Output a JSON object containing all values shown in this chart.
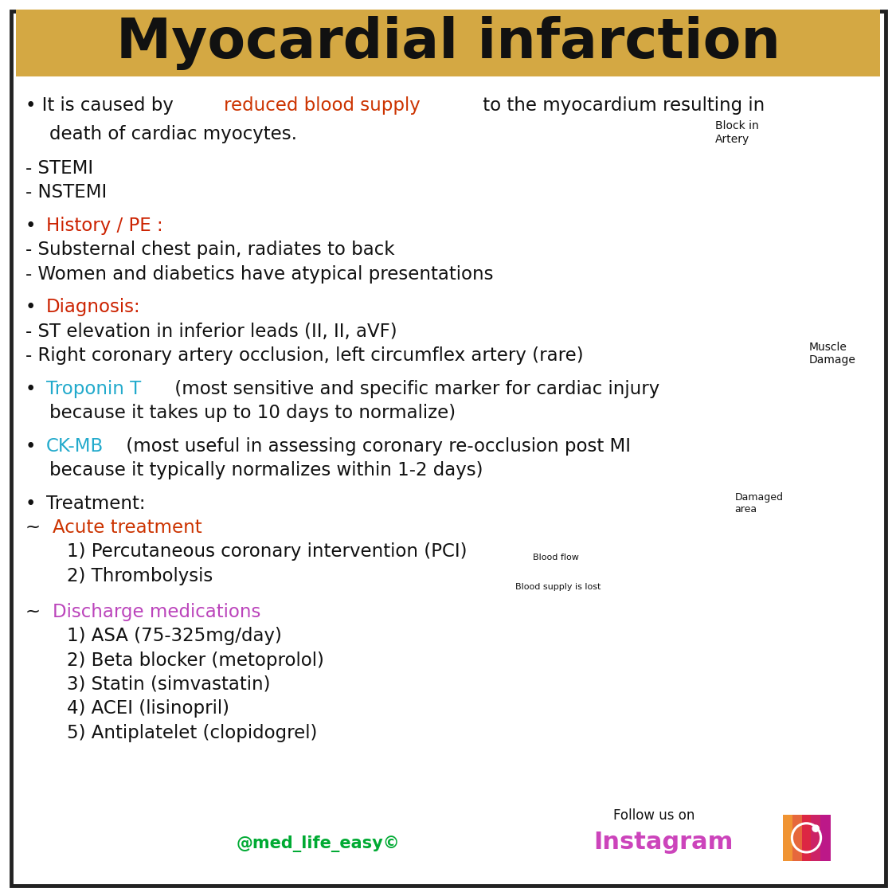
{
  "title": "Myocardial infarction",
  "title_bg": "#D4A843",
  "bg_color": "#FFFFFF",
  "border_color": "#222222",
  "title_color": "#111111",
  "black": "#111111",
  "red": "#CC2200",
  "orange_red": "#CC3300",
  "cyan": "#22AACC",
  "green": "#00AA33",
  "purple": "#BB44BB",
  "follow_text": "Follow us on",
  "instagram_text": "Instagram",
  "watermark": "@med_life_easy©",
  "watermark_color": "#00AA33",
  "instagram_color": "#CC44BB",
  "block_artery_text": "Block in\nArtery",
  "muscle_damage_text": "Muscle\nDamage",
  "damaged_area_text": "Damaged\narea",
  "blood_flow_text": "Blood flow",
  "blood_supply_text": "Blood supply is lost"
}
